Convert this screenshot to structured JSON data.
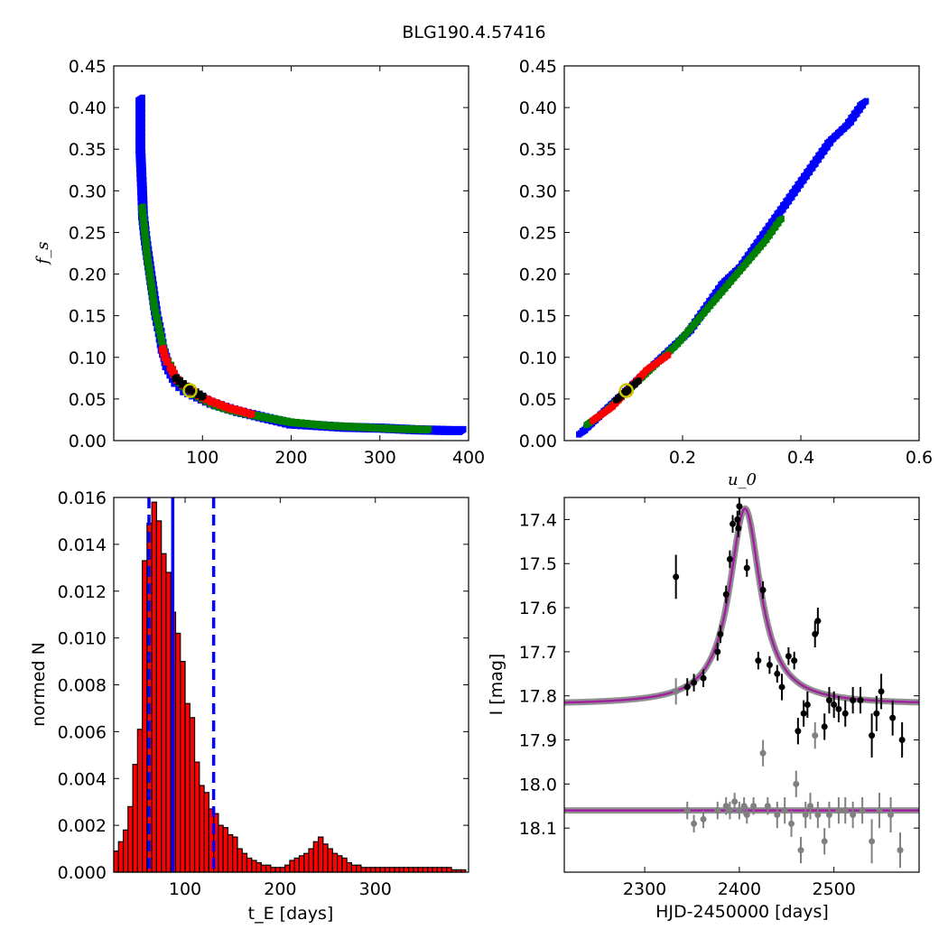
{
  "figure_title": "BLG190.4.57416",
  "colors": {
    "blue": "#0000ff",
    "green": "#008000",
    "red": "#ff0000",
    "black": "#000000",
    "marker_ring": "#c8c800",
    "hist_fill": "#ff0000",
    "model_line": "#a020a0",
    "data_main": "#000000",
    "data_resid": "#808080"
  },
  "chart_data": [
    {
      "id": "fs_vs_tE",
      "type": "heatmap",
      "title": "",
      "xlabel": "",
      "ylabel": "f_s",
      "xlim": [
        0,
        400
      ],
      "ylim": [
        0.0,
        0.45
      ],
      "xticks": [
        "100",
        "200",
        "300",
        "400"
      ],
      "yticks": [
        "0.00",
        "0.05",
        "0.10",
        "0.15",
        "0.20",
        "0.25",
        "0.30",
        "0.35",
        "0.40",
        "0.45"
      ],
      "level_colors": [
        "#0000ff",
        "#008000",
        "#ff0000",
        "#000000"
      ],
      "blue_cells": [
        [
          30,
          0.41
        ],
        [
          30,
          0.38
        ],
        [
          30,
          0.35
        ],
        [
          32,
          0.3
        ],
        [
          33,
          0.27
        ],
        [
          36,
          0.24
        ],
        [
          40,
          0.21
        ],
        [
          44,
          0.18
        ],
        [
          48,
          0.15
        ],
        [
          52,
          0.13
        ],
        [
          55,
          0.11
        ],
        [
          58,
          0.1
        ],
        [
          60,
          0.09
        ],
        [
          65,
          0.08
        ],
        [
          70,
          0.07
        ],
        [
          75,
          0.065
        ],
        [
          80,
          0.06
        ],
        [
          90,
          0.055
        ],
        [
          100,
          0.05
        ],
        [
          110,
          0.045
        ],
        [
          125,
          0.04
        ],
        [
          140,
          0.035
        ],
        [
          160,
          0.03
        ],
        [
          180,
          0.025
        ],
        [
          200,
          0.02
        ],
        [
          230,
          0.018
        ],
        [
          260,
          0.016
        ],
        [
          300,
          0.015
        ],
        [
          340,
          0.013
        ],
        [
          380,
          0.012
        ],
        [
          398,
          0.012
        ]
      ],
      "green_cells": [
        [
          32,
          0.28
        ],
        [
          35,
          0.25
        ],
        [
          38,
          0.22
        ],
        [
          42,
          0.19
        ],
        [
          46,
          0.16
        ],
        [
          50,
          0.14
        ],
        [
          54,
          0.12
        ],
        [
          58,
          0.1
        ],
        [
          64,
          0.09
        ],
        [
          70,
          0.075
        ],
        [
          78,
          0.065
        ],
        [
          88,
          0.058
        ],
        [
          100,
          0.05
        ],
        [
          115,
          0.042
        ],
        [
          130,
          0.037
        ],
        [
          150,
          0.032
        ],
        [
          175,
          0.027
        ],
        [
          200,
          0.022
        ],
        [
          240,
          0.018
        ],
        [
          280,
          0.016
        ],
        [
          320,
          0.014
        ],
        [
          360,
          0.013
        ]
      ],
      "red_cells": [
        [
          55,
          0.11
        ],
        [
          58,
          0.1
        ],
        [
          60,
          0.095
        ],
        [
          64,
          0.088
        ],
        [
          68,
          0.08
        ],
        [
          72,
          0.073
        ],
        [
          78,
          0.067
        ],
        [
          85,
          0.062
        ],
        [
          92,
          0.057
        ],
        [
          100,
          0.052
        ],
        [
          110,
          0.047
        ],
        [
          120,
          0.043
        ],
        [
          130,
          0.039
        ],
        [
          145,
          0.035
        ],
        [
          160,
          0.03
        ]
      ],
      "black_cells": [
        [
          70,
          0.075
        ],
        [
          78,
          0.068
        ],
        [
          85,
          0.062
        ],
        [
          92,
          0.058
        ],
        [
          100,
          0.053
        ],
        [
          105,
          0.05
        ]
      ],
      "best_fit": {
        "x": 86,
        "y": 0.06
      }
    },
    {
      "id": "fs_vs_u0",
      "type": "heatmap",
      "title": "",
      "xlabel": "u_0",
      "ylabel": "",
      "xlim": [
        0.0,
        0.6
      ],
      "ylim": [
        0.0,
        0.45
      ],
      "xticks": [
        "0.2",
        "0.4",
        "0.6"
      ],
      "yticks": [
        "0.00",
        "0.05",
        "0.10",
        "0.15",
        "0.20",
        "0.25",
        "0.30",
        "0.35",
        "0.40",
        "0.45"
      ],
      "level_colors": [
        "#0000ff",
        "#008000",
        "#ff0000",
        "#000000"
      ],
      "blue_cells": [
        [
          0.03,
          0.01
        ],
        [
          0.06,
          0.03
        ],
        [
          0.09,
          0.05
        ],
        [
          0.12,
          0.07
        ],
        [
          0.15,
          0.09
        ],
        [
          0.18,
          0.11
        ],
        [
          0.21,
          0.13
        ],
        [
          0.24,
          0.16
        ],
        [
          0.27,
          0.19
        ],
        [
          0.3,
          0.21
        ],
        [
          0.33,
          0.24
        ],
        [
          0.36,
          0.27
        ],
        [
          0.39,
          0.3
        ],
        [
          0.42,
          0.33
        ],
        [
          0.45,
          0.36
        ],
        [
          0.48,
          0.38
        ],
        [
          0.5,
          0.4
        ],
        [
          0.51,
          0.41
        ]
      ],
      "green_cells": [
        [
          0.04,
          0.02
        ],
        [
          0.07,
          0.035
        ],
        [
          0.1,
          0.055
        ],
        [
          0.13,
          0.075
        ],
        [
          0.16,
          0.095
        ],
        [
          0.19,
          0.115
        ],
        [
          0.22,
          0.14
        ],
        [
          0.25,
          0.165
        ],
        [
          0.28,
          0.19
        ],
        [
          0.31,
          0.215
        ],
        [
          0.34,
          0.24
        ],
        [
          0.37,
          0.27
        ]
      ],
      "red_cells": [
        [
          0.05,
          0.025
        ],
        [
          0.08,
          0.04
        ],
        [
          0.1,
          0.055
        ],
        [
          0.12,
          0.07
        ],
        [
          0.14,
          0.085
        ],
        [
          0.16,
          0.095
        ],
        [
          0.18,
          0.105
        ]
      ],
      "black_cells": [
        [
          0.09,
          0.05
        ],
        [
          0.11,
          0.062
        ],
        [
          0.13,
          0.075
        ]
      ],
      "best_fit": {
        "x": 0.105,
        "y": 0.06
      }
    },
    {
      "id": "tE_histogram",
      "type": "bar",
      "title": "",
      "xlabel": "t_E [days]",
      "ylabel": "normed N",
      "xlim": [
        25,
        398
      ],
      "ylim": [
        0.0,
        0.016
      ],
      "xticks": [
        "100",
        "200",
        "300"
      ],
      "yticks": [
        "0.000",
        "0.002",
        "0.004",
        "0.006",
        "0.008",
        "0.010",
        "0.012",
        "0.014",
        "0.016"
      ],
      "bin_width": 5,
      "bin_start": 25,
      "values": [
        0.0009,
        0.0013,
        0.0018,
        0.0028,
        0.0046,
        0.0061,
        0.0133,
        0.0149,
        0.0158,
        0.015,
        0.0136,
        0.0128,
        0.0111,
        0.0102,
        0.009,
        0.0072,
        0.0066,
        0.0047,
        0.0037,
        0.0034,
        0.0027,
        0.0025,
        0.002,
        0.0019,
        0.0016,
        0.0015,
        0.001,
        0.0008,
        0.0006,
        0.0005,
        0.0004,
        0.0003,
        0.0003,
        0.0002,
        0.0002,
        0.0002,
        0.0003,
        0.0005,
        0.0006,
        0.0007,
        0.0008,
        0.001,
        0.0013,
        0.0015,
        0.0012,
        0.001,
        0.0008,
        0.0007,
        0.0006,
        0.0004,
        0.0003,
        0.0003,
        0.0002,
        0.0002,
        0.0002,
        0.0002,
        0.0002,
        0.0002,
        0.0002,
        0.0002,
        0.0002,
        0.0002,
        0.0002,
        0.0002,
        0.0002,
        0.0002,
        0.0002,
        0.0002,
        0.0002,
        0.0002,
        0.0002,
        0.0001,
        0.0001,
        0.0001
      ],
      "median": 87,
      "lower_bound": 62,
      "upper_bound": 130
    },
    {
      "id": "light_curve",
      "type": "scatter",
      "title": "",
      "xlabel": "HJD-2450000 [days]",
      "ylabel": "I [mag]",
      "xlim": [
        2215,
        2590
      ],
      "ylim": [
        18.2,
        17.35
      ],
      "y_inverted": true,
      "xticks": [
        "2300",
        "2400",
        "2500"
      ],
      "yticks": [
        "17.4",
        "17.5",
        "17.6",
        "17.7",
        "17.8",
        "17.9",
        "18.0",
        "18.1"
      ],
      "model": {
        "t0": 2406,
        "baseline": 17.82,
        "peak": 17.375,
        "width": 20
      },
      "residual_baseline": 18.06,
      "data_points": [
        [
          2333,
          17.53,
          0.05
        ],
        [
          2345,
          17.78,
          0.02
        ],
        [
          2352,
          17.77,
          0.02
        ],
        [
          2362,
          17.76,
          0.02
        ],
        [
          2377,
          17.7,
          0.02
        ],
        [
          2380,
          17.66,
          0.02
        ],
        [
          2386,
          17.57,
          0.02
        ],
        [
          2390,
          17.49,
          0.02
        ],
        [
          2393,
          17.41,
          0.02
        ],
        [
          2398,
          17.4,
          0.02
        ],
        [
          2399,
          17.42,
          0.02
        ],
        [
          2400,
          17.37,
          0.02
        ],
        [
          2408,
          17.51,
          0.02
        ],
        [
          2420,
          17.72,
          0.02
        ],
        [
          2425,
          17.56,
          0.02
        ],
        [
          2432,
          17.73,
          0.02
        ],
        [
          2440,
          17.75,
          0.02
        ],
        [
          2445,
          17.78,
          0.03
        ],
        [
          2452,
          17.71,
          0.02
        ],
        [
          2458,
          17.72,
          0.02
        ],
        [
          2462,
          17.88,
          0.03
        ],
        [
          2468,
          17.84,
          0.03
        ],
        [
          2472,
          17.82,
          0.03
        ],
        [
          2480,
          17.66,
          0.03
        ],
        [
          2483,
          17.63,
          0.03
        ],
        [
          2490,
          17.87,
          0.03
        ],
        [
          2495,
          17.81,
          0.03
        ],
        [
          2500,
          17.82,
          0.03
        ],
        [
          2505,
          17.83,
          0.03
        ],
        [
          2512,
          17.84,
          0.03
        ],
        [
          2520,
          17.81,
          0.03
        ],
        [
          2528,
          17.81,
          0.03
        ],
        [
          2540,
          17.89,
          0.05
        ],
        [
          2545,
          17.84,
          0.04
        ],
        [
          2550,
          17.79,
          0.04
        ],
        [
          2562,
          17.85,
          0.04
        ],
        [
          2572,
          17.9,
          0.04
        ]
      ],
      "residual_points": [
        [
          2333,
          17.79,
          0.03
        ],
        [
          2345,
          18.06,
          0.02
        ],
        [
          2352,
          18.09,
          0.02
        ],
        [
          2362,
          18.08,
          0.02
        ],
        [
          2377,
          18.06,
          0.02
        ],
        [
          2386,
          18.05,
          0.02
        ],
        [
          2390,
          18.06,
          0.02
        ],
        [
          2395,
          18.04,
          0.02
        ],
        [
          2400,
          18.06,
          0.02
        ],
        [
          2405,
          18.05,
          0.02
        ],
        [
          2408,
          18.07,
          0.02
        ],
        [
          2415,
          18.05,
          0.02
        ],
        [
          2425,
          17.93,
          0.03
        ],
        [
          2430,
          18.05,
          0.02
        ],
        [
          2440,
          18.07,
          0.03
        ],
        [
          2448,
          18.06,
          0.03
        ],
        [
          2455,
          18.09,
          0.03
        ],
        [
          2460,
          18.0,
          0.03
        ],
        [
          2465,
          18.15,
          0.03
        ],
        [
          2470,
          18.07,
          0.03
        ],
        [
          2475,
          18.05,
          0.03
        ],
        [
          2480,
          17.89,
          0.03
        ],
        [
          2483,
          18.07,
          0.03
        ],
        [
          2490,
          18.13,
          0.03
        ],
        [
          2495,
          18.07,
          0.03
        ],
        [
          2505,
          18.06,
          0.03
        ],
        [
          2512,
          18.06,
          0.03
        ],
        [
          2520,
          18.07,
          0.03
        ],
        [
          2530,
          18.06,
          0.03
        ],
        [
          2540,
          18.13,
          0.05
        ],
        [
          2548,
          18.06,
          0.04
        ],
        [
          2560,
          18.07,
          0.04
        ],
        [
          2570,
          18.15,
          0.04
        ]
      ]
    }
  ]
}
